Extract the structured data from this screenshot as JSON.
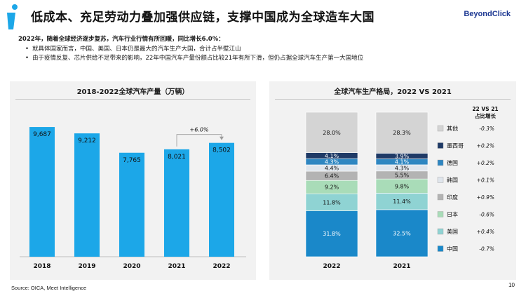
{
  "header": {
    "title": "低成本、充足劳动力叠加强供应链，支撑中国成为全球造车大国",
    "logo_text": "BeyondClick"
  },
  "summary": {
    "lead": "2022年，随着全球经济逐步复苏，汽车行业行情有所回暖，同比增长6.0%：",
    "bullets": [
      "就具体国家而言，中国、美国、日本仍是最大的汽车生产大国，合计占半壁江山",
      "由于疫情反复、芯片供给不足带来的影响，22年中国汽车产量份额占比较21年有所下滑，但仍占据全球汽车生产第一大国地位"
    ]
  },
  "chart_data": [
    {
      "type": "bar",
      "title": "2018-2022全球汽车产量（万辆）",
      "categories": [
        "2018",
        "2019",
        "2020",
        "2021",
        "2022"
      ],
      "values": [
        9687,
        9212,
        7765,
        8021,
        8502
      ],
      "value_labels": [
        "9,687",
        "9,212",
        "7,765",
        "8,021",
        "8,502"
      ],
      "annotation": "+6.0%",
      "color": "#1ca7e8",
      "ylim": [
        0,
        11000
      ]
    },
    {
      "type": "bar",
      "stacked": true,
      "title": "全球汽车生产格局，2022 VS 2021",
      "categories": [
        "2022",
        "2021"
      ],
      "series": [
        {
          "name": "中国",
          "values": [
            31.8,
            32.5
          ],
          "labels": [
            "31.8%",
            "32.5%"
          ],
          "change": "-0.7%",
          "color": "#1a88c9"
        },
        {
          "name": "美国",
          "values": [
            11.8,
            11.4
          ],
          "labels": [
            "11.8%",
            "11.4%"
          ],
          "change": "+0.4%",
          "color": "#8fd3d3"
        },
        {
          "name": "日本",
          "values": [
            9.2,
            9.8
          ],
          "labels": [
            "9.2%",
            "9.8%"
          ],
          "change": "-0.6%",
          "color": "#a9dcb8"
        },
        {
          "name": "印度",
          "values": [
            6.4,
            5.5
          ],
          "labels": [
            "6.4%",
            "5.5%"
          ],
          "change": "+0.9%",
          "color": "#b3b3b3"
        },
        {
          "name": "韩国",
          "values": [
            4.4,
            4.3
          ],
          "labels": [
            "4.4%",
            "4.3%"
          ],
          "change": "+0.1%",
          "color": "#dfe5ec"
        },
        {
          "name": "德国",
          "values": [
            4.3,
            4.1
          ],
          "labels": [
            "4.3%",
            "4.1%"
          ],
          "change": "+0.2%",
          "color": "#2e86c1"
        },
        {
          "name": "墨西哥",
          "values": [
            4.1,
            3.9
          ],
          "labels": [
            "4.1%",
            "3.9%"
          ],
          "change": "+0.2%",
          "color": "#1f3a66"
        },
        {
          "name": "其他",
          "values": [
            28.0,
            28.3
          ],
          "labels": [
            "28.0%",
            "28.3%"
          ],
          "change": "-0.3%",
          "color": "#d4d4d4"
        }
      ],
      "legend_header": "22 VS 21\n占比增长",
      "ylim": [
        0,
        100
      ]
    }
  ],
  "footer": {
    "source": "Source: OICA, Meet Intelligence",
    "page_number": "10"
  },
  "colors": {
    "accent": "#1ca7e8",
    "brand": "#1f3a93"
  }
}
